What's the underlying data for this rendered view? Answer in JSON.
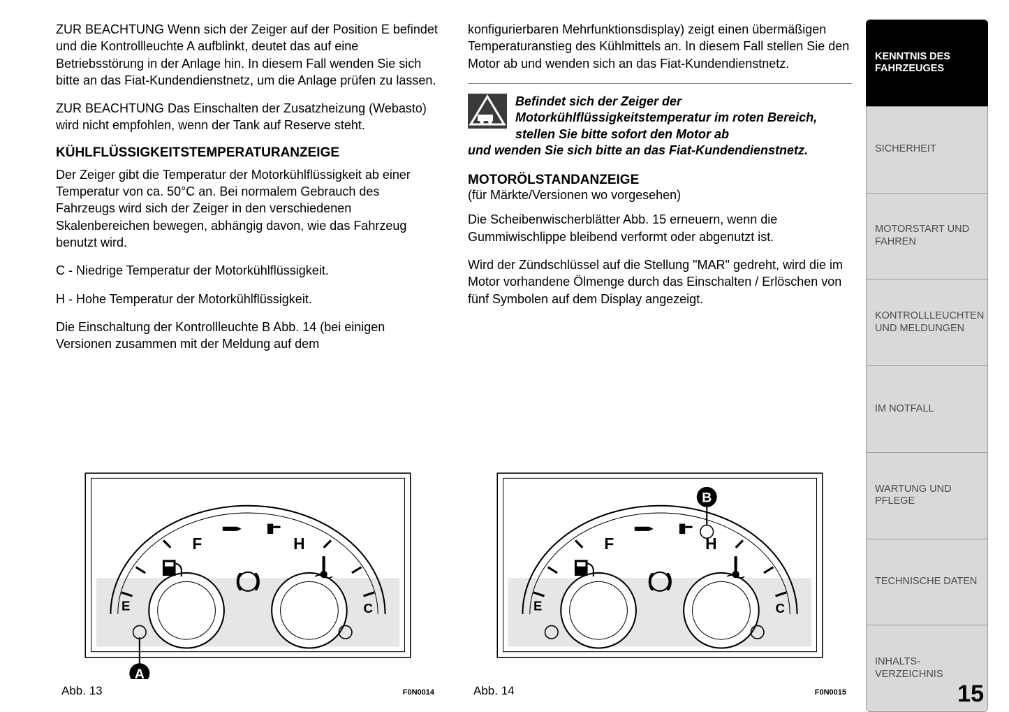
{
  "leftColumn": {
    "para1": "ZUR BEACHTUNG Wenn sich der Zeiger auf der Position E befindet und die Kontrollleuchte A aufblinkt, deutet das auf eine Betriebsstörung in der Anlage hin. In diesem Fall wenden Sie sich bitte an das Fiat-Kundendienstnetz, um die Anlage prüfen zu lassen.",
    "para2": "ZUR BEACHTUNG Das Einschalten der Zusatzheizung (Webasto) wird nicht empfohlen, wenn der Tank auf Reserve steht.",
    "heading1": "KÜHLFLÜSSIGKEITSTEMPERATURANZEIGE",
    "para3": "Der Zeiger gibt die Temperatur der Motorkühlflüssigkeit ab einer Temperatur von ca. 50°C an. Bei normalem Gebrauch des Fahrzeugs wird sich der Zeiger in den verschiedenen Skalenbereichen bewegen, abhängig davon, wie das Fahrzeug benutzt wird.",
    "para4": "C - Niedrige Temperatur der Motorkühlflüssigkeit.",
    "para5": "H - Hohe Temperatur der Motorkühlflüssigkeit.",
    "para6": "Die Einschaltung der Kontrollleuchte B Abb. 14 (bei einigen Versionen zusammen mit der Meldung auf dem"
  },
  "rightColumn": {
    "para1": "konfigurierbaren Mehrfunktionsdisplay) zeigt einen übermäßigen Temperaturanstieg des Kühlmittels an. In diesem Fall stellen Sie den Motor ab und wenden sich an das Fiat-Kundendienstnetz.",
    "warningLine1": "Befindet sich der Zeiger der Motorkühlflüssigkeitstemperatur im roten Bereich, stellen Sie bitte sofort den Motor ab",
    "warningLine2": "und wenden Sie sich bitte an das Fiat-Kundendienstnetz.",
    "heading1": "MOTORÖLSTANDANZEIGE",
    "subheading1": "(für Märkte/Versionen wo vorgesehen)",
    "para2": "Die Scheibenwischerblätter Abb. 15 erneuern, wenn die Gummiwischlippe bleibend verformt oder abgenutzt ist.",
    "para3": "Wird der Zündschlüssel auf die Stellung \"MAR\" gedreht, wird die im Motor vorhandene Ölmenge durch das Einschalten / Erlöschen von fünf Symbolen auf dem Display angezeigt."
  },
  "figures": {
    "fig1": {
      "caption": "Abb. 13",
      "code": "F0N0014",
      "labelLetter": "A",
      "gaugeLeft": "F",
      "gaugeRight": "H",
      "leftBottom": "E",
      "rightBottom": "C"
    },
    "fig2": {
      "caption": "Abb. 14",
      "code": "F0N0015",
      "labelLetter": "B",
      "gaugeLeft": "F",
      "gaugeRight": "H",
      "leftBottom": "E",
      "rightBottom": "C"
    }
  },
  "sidebar": {
    "tabs": [
      "KENNTNIS DES FAHRZEUGES",
      "SICHERHEIT",
      "MOTORSTART UND FAHREN",
      "KONTROLLLEUCHTEN UND MELDUNGEN",
      "IM NOTFALL",
      "WARTUNG UND PFLEGE",
      "TECHNISCHE DATEN",
      "INHALTS-VERZEICHNIS"
    ],
    "activeIndex": 0
  },
  "pageNumber": "15",
  "colors": {
    "sidebarBg": "#d9d9d9",
    "activeBg": "#000000",
    "textGray": "#4a4a4a",
    "figBg": "#e6e6e6",
    "figBorder": "#000000"
  }
}
